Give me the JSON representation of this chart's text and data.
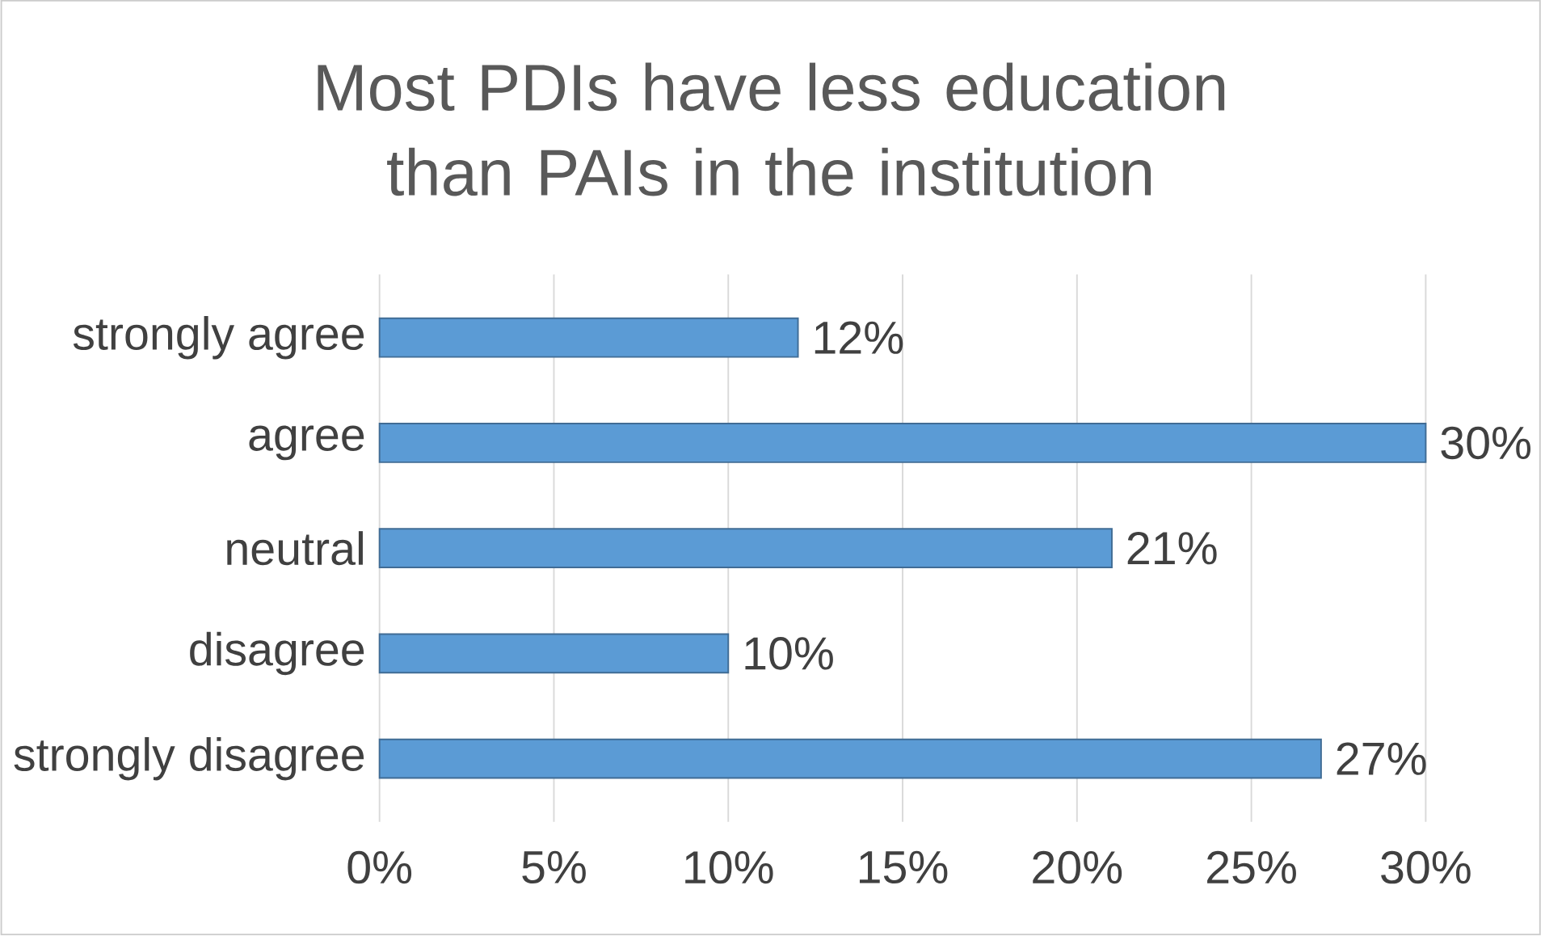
{
  "chart_data": {
    "type": "bar",
    "orientation": "horizontal",
    "title": "Most PDIs have less education than PAIs in the institution",
    "categories": [
      "strongly agree",
      "agree",
      "neutral",
      "disagree",
      "strongly disagree"
    ],
    "values": [
      12,
      30,
      21,
      10,
      27
    ],
    "value_labels": [
      "12%",
      "30%",
      "21%",
      "10%",
      "27%"
    ],
    "color": "#5b9bd5",
    "xlim": [
      0,
      30
    ],
    "xticks": [
      {
        "value": 0,
        "label": "0%"
      },
      {
        "value": 5,
        "label": "5%"
      },
      {
        "value": 10,
        "label": "10%"
      },
      {
        "value": 15,
        "label": "15%"
      },
      {
        "value": 20,
        "label": "20%"
      },
      {
        "value": 25,
        "label": "25%"
      },
      {
        "value": 30,
        "label": "30%"
      }
    ],
    "grid": "x"
  }
}
